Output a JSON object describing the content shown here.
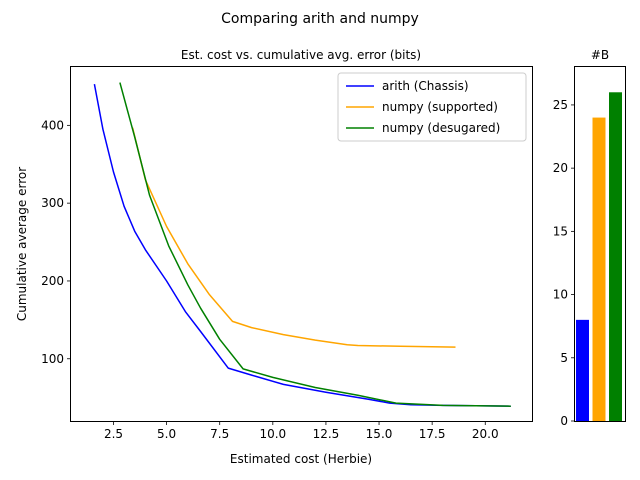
{
  "figure": {
    "suptitle": "Comparing arith and numpy"
  },
  "chart_data": [
    {
      "type": "line",
      "title": "Est. cost vs. cumulative avg. error (bits)",
      "xlabel": "Estimated cost (Herbie)",
      "ylabel": "Cumulative average error",
      "xlim": [
        0.5,
        22.2
      ],
      "ylim": [
        20,
        475
      ],
      "xticks": [
        2.5,
        5.0,
        7.5,
        10.0,
        12.5,
        15.0,
        17.5,
        20.0
      ],
      "xtick_labels": [
        "2.5",
        "5.0",
        "7.5",
        "10.0",
        "12.5",
        "15.0",
        "17.5",
        "20.0"
      ],
      "yticks": [
        100,
        200,
        300,
        400
      ],
      "ytick_labels": [
        "100",
        "200",
        "300",
        "400"
      ],
      "grid": false,
      "legend_position": "top-right",
      "series": [
        {
          "name": "arith (Chassis)",
          "color": "#0000ff",
          "x": [
            1.6,
            2.0,
            2.5,
            3.0,
            3.5,
            4.0,
            5.0,
            5.9,
            6.6,
            7.9,
            9.0,
            10.5,
            12.5,
            14.5,
            15.5,
            16.5,
            18.0,
            21.2
          ],
          "y": [
            453,
            395,
            340,
            296,
            264,
            240,
            200,
            160,
            135,
            88,
            79,
            67,
            57,
            48,
            43,
            41,
            40,
            39
          ]
        },
        {
          "name": "numpy (supported)",
          "color": "#ffa500",
          "x": [
            3.4,
            4.0,
            5.0,
            6.0,
            7.0,
            8.1,
            9.0,
            10.5,
            12.0,
            13.5,
            14.0,
            16.0,
            18.6
          ],
          "y": [
            397,
            330,
            270,
            222,
            183,
            148,
            140,
            131,
            124,
            118,
            117,
            116,
            115
          ]
        },
        {
          "name": "numpy (desugared)",
          "color": "#008000",
          "x": [
            2.8,
            3.5,
            4.2,
            5.1,
            6.0,
            6.6,
            7.5,
            8.6,
            10.0,
            12.0,
            14.0,
            15.8,
            18.0,
            21.2
          ],
          "y": [
            455,
            385,
            310,
            245,
            195,
            165,
            125,
            87,
            76,
            63,
            53,
            43,
            40,
            39
          ]
        }
      ]
    },
    {
      "type": "bar",
      "title": "#B",
      "categories": [
        "arith (Chassis)",
        "numpy (supported)",
        "numpy (desugared)"
      ],
      "values": [
        8,
        24,
        26
      ],
      "colors": [
        "#0000ff",
        "#ffa500",
        "#008000"
      ],
      "ylim": [
        0,
        28
      ],
      "yticks": [
        0,
        5,
        10,
        15,
        20,
        25
      ],
      "ytick_labels": [
        "0",
        "5",
        "10",
        "15",
        "20",
        "25"
      ],
      "grid": false
    }
  ]
}
